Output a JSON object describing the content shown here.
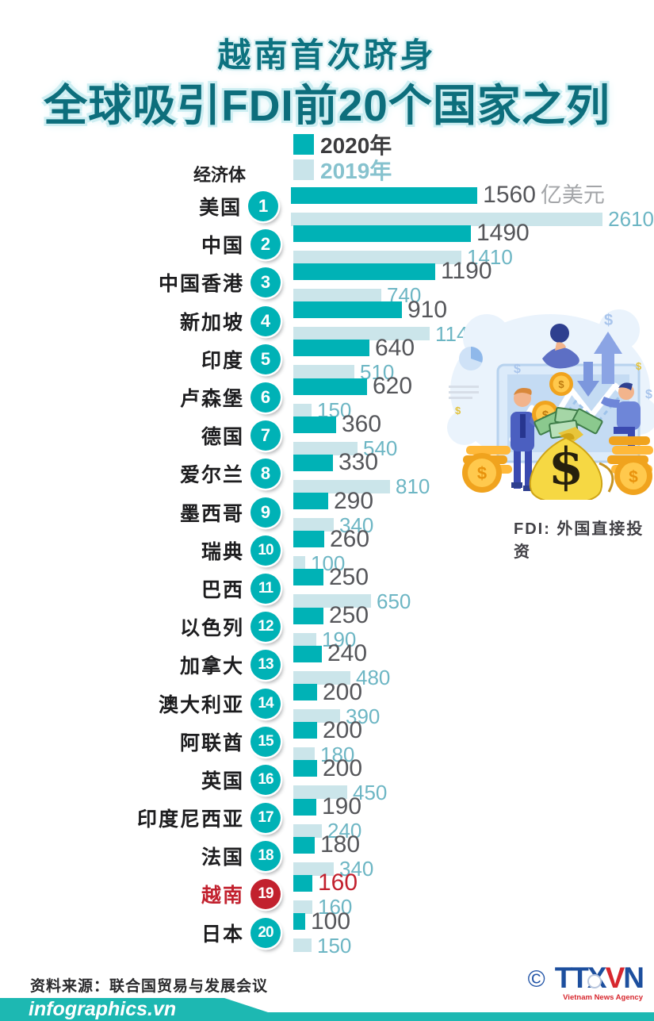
{
  "header": {
    "subtitle": "越南首次跻身",
    "title": "全球吸引FDI前20个国家之列"
  },
  "legend": {
    "year2020": "2020年",
    "year2019": "2019年"
  },
  "axis_label": "经济体",
  "note": "FDI: 外国直接投资",
  "source": "资料来源：联合国贸易与发展会议",
  "footer": {
    "site": "infographics.vn",
    "copyright": "©",
    "agency_part1": "TTX",
    "agency_part2": "V",
    "agency_part3": "N",
    "agency_sub": "Vietnam News Agency"
  },
  "colors": {
    "teal": "#00b2b6",
    "light_blue": "#cbe5ea",
    "title_teal": "#0d6e7c",
    "highlight_red": "#c2212e",
    "value_gray": "#55565a",
    "value_2019": "#6db6c4",
    "banner_teal": "#1db8b2"
  },
  "chart_data": {
    "type": "bar",
    "orientation": "horizontal",
    "title": "越南首次跻身全球吸引FDI前20个国家之列",
    "unit": "亿美元",
    "xlabel": "FDI (亿美元)",
    "ylabel": "经济体",
    "xlim": [
      0,
      2700
    ],
    "grid": false,
    "legend_position": "top",
    "series_names": [
      "2020年",
      "2019年"
    ],
    "categories": [
      "美国",
      "中国",
      "中国香港",
      "新加坡",
      "印度",
      "卢森堡",
      "德国",
      "爱尔兰",
      "墨西哥",
      "瑞典",
      "巴西",
      "以色列",
      "加拿大",
      "澳大利亚",
      "阿联酋",
      "英国",
      "印度尼西亚",
      "法国",
      "越南",
      "日本"
    ],
    "series": [
      {
        "name": "2020年",
        "values": [
          1560,
          1490,
          1190,
          910,
          640,
          620,
          360,
          330,
          290,
          260,
          250,
          250,
          240,
          200,
          200,
          200,
          190,
          180,
          160,
          100
        ]
      },
      {
        "name": "2019年",
        "values": [
          2610,
          1410,
          740,
          1140,
          510,
          150,
          540,
          810,
          340,
          100,
          650,
          190,
          480,
          390,
          180,
          450,
          240,
          340,
          160,
          150
        ]
      }
    ],
    "rows": [
      {
        "rank": 1,
        "country": "美国",
        "y2020": 1560,
        "y2019": 2610,
        "unit_after_2020": "亿美元",
        "highlight": false
      },
      {
        "rank": 2,
        "country": "中国",
        "y2020": 1490,
        "y2019": 1410,
        "highlight": false
      },
      {
        "rank": 3,
        "country": "中国香港",
        "y2020": 1190,
        "y2019": 740,
        "highlight": false
      },
      {
        "rank": 4,
        "country": "新加坡",
        "y2020": 910,
        "y2019": 1140,
        "highlight": false
      },
      {
        "rank": 5,
        "country": "印度",
        "y2020": 640,
        "y2019": 510,
        "highlight": false
      },
      {
        "rank": 6,
        "country": "卢森堡",
        "y2020": 620,
        "y2019": 150,
        "highlight": false
      },
      {
        "rank": 7,
        "country": "德国",
        "y2020": 360,
        "y2019": 540,
        "highlight": false
      },
      {
        "rank": 8,
        "country": "爱尔兰",
        "y2020": 330,
        "y2019": 810,
        "highlight": false
      },
      {
        "rank": 9,
        "country": "墨西哥",
        "y2020": 290,
        "y2019": 340,
        "highlight": false
      },
      {
        "rank": 10,
        "country": "瑞典",
        "y2020": 260,
        "y2019": 100,
        "highlight": false
      },
      {
        "rank": 11,
        "country": "巴西",
        "y2020": 250,
        "y2019": 650,
        "highlight": false
      },
      {
        "rank": 12,
        "country": "以色列",
        "y2020": 250,
        "y2019": 190,
        "highlight": false
      },
      {
        "rank": 13,
        "country": "加拿大",
        "y2020": 240,
        "y2019": 480,
        "highlight": false
      },
      {
        "rank": 14,
        "country": "澳大利亚",
        "y2020": 200,
        "y2019": 390,
        "highlight": false
      },
      {
        "rank": 15,
        "country": "阿联酋",
        "y2020": 200,
        "y2019": 180,
        "highlight": false
      },
      {
        "rank": 16,
        "country": "英国",
        "y2020": 200,
        "y2019": 450,
        "highlight": false
      },
      {
        "rank": 17,
        "country": "印度尼西亚",
        "y2020": 190,
        "y2019": 240,
        "highlight": false
      },
      {
        "rank": 18,
        "country": "法国",
        "y2020": 180,
        "y2019": 340,
        "highlight": false
      },
      {
        "rank": 19,
        "country": "越南",
        "y2020": 160,
        "y2019": 160,
        "highlight": true
      },
      {
        "rank": 20,
        "country": "日本",
        "y2020": 100,
        "y2019": 150,
        "highlight": false
      }
    ]
  }
}
